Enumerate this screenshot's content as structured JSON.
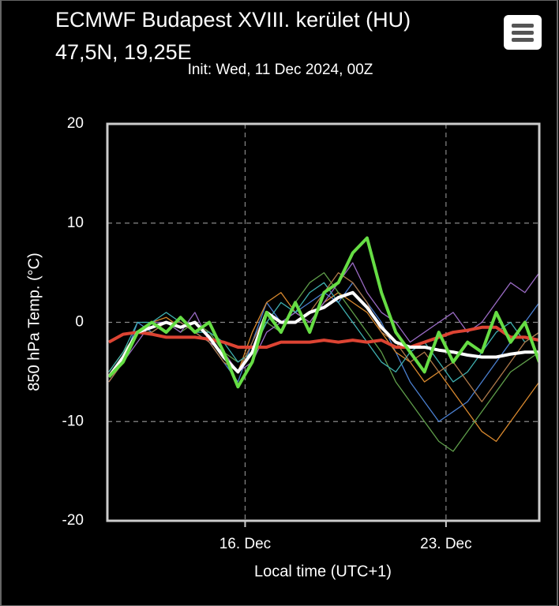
{
  "chart_data": {
    "type": "line",
    "title": "ECMWF Budapest XVIII. kerület (HU)",
    "subtitle": "47,5N, 19,25E",
    "annotation": "Init: Wed, 11 Dec 2024, 00Z",
    "y_label": "850 hPa Temp. (°C)",
    "x_label": "Local time (UTC+1)",
    "x": [
      11.25,
      11.75,
      12.25,
      12.75,
      13.25,
      13.75,
      14.25,
      14.75,
      15.25,
      15.75,
      16.25,
      16.75,
      17.25,
      17.75,
      18.25,
      18.75,
      19.25,
      19.75,
      20.25,
      20.75,
      21.25,
      21.75,
      22.25,
      22.75,
      23.25,
      23.75,
      24.25,
      24.75,
      25.25,
      25.75,
      26.25
    ],
    "xlim": [
      11.2,
      26.25
    ],
    "xticks": [
      {
        "value": 16,
        "label": "16. Dec"
      },
      {
        "value": 23,
        "label": "23. Dec"
      }
    ],
    "ylim": [
      -20,
      20
    ],
    "yticks": [
      -20,
      -10,
      0,
      10,
      20
    ],
    "grid": true,
    "series": [
      {
        "color": "#4a7fd0",
        "width": 1.3,
        "values": [
          -6,
          -4,
          0,
          -1,
          0,
          0,
          -1,
          -2,
          -4,
          -6,
          -2,
          2,
          0,
          1,
          2,
          3,
          2,
          4,
          2,
          0,
          -3,
          -6,
          -8,
          -10,
          -9,
          -8,
          -6,
          -4,
          -2,
          0,
          2
        ]
      },
      {
        "color": "#d9892e",
        "width": 1.3,
        "values": [
          -5,
          -3,
          -1,
          0,
          0.5,
          -0.5,
          0,
          -1,
          -3,
          -5,
          -1,
          2,
          3,
          1,
          0,
          2,
          3,
          2,
          1,
          -1,
          -3,
          -4,
          -6,
          -5,
          -7,
          -9,
          -11,
          -12,
          -10,
          -8,
          -6
        ]
      },
      {
        "color": "#5f9e4a",
        "width": 1.3,
        "values": [
          -5,
          -3,
          -1,
          -1,
          0,
          -1,
          0,
          -1,
          -3,
          -4,
          -3,
          0,
          -1,
          2,
          4,
          5,
          3,
          1,
          -1,
          -3,
          -6,
          -8,
          -10,
          -12,
          -13,
          -11,
          -9,
          -7,
          -5,
          -4,
          -3
        ]
      },
      {
        "color": "#9a6bc4",
        "width": 1.3,
        "values": [
          -6,
          -4,
          -2,
          0,
          0,
          -1,
          1,
          -2,
          -3,
          -5,
          -4,
          -1,
          0,
          1,
          0,
          2,
          4,
          6,
          3,
          1,
          0,
          -2,
          -1,
          0,
          1,
          -1,
          0,
          2,
          4,
          3,
          5
        ]
      },
      {
        "color": "#3fb0b0",
        "width": 1.3,
        "values": [
          -5,
          -3,
          0,
          0,
          1,
          0,
          -1,
          -1,
          -2,
          -4,
          -3,
          0,
          2,
          1,
          3,
          4,
          2,
          0,
          -2,
          -4,
          -5,
          -3,
          -2,
          -4,
          -6,
          -5,
          -3,
          -1,
          0,
          -2,
          -1
        ]
      },
      {
        "color": "#b07a4a",
        "width": 1.3,
        "values": [
          -6,
          -4,
          -1,
          -1,
          0,
          0,
          -1,
          -2,
          -4,
          -5,
          -2,
          1,
          0,
          0,
          1,
          3,
          5,
          4,
          2,
          -1,
          -2,
          -4,
          -3,
          -5,
          -4,
          -6,
          -8,
          -6,
          -4,
          -2,
          -1
        ]
      },
      {
        "color": "#dd4433",
        "width": 4,
        "values": [
          -2,
          -1.2,
          -1,
          -1.2,
          -1.5,
          -1.5,
          -1.5,
          -1.7,
          -2,
          -2.5,
          -2.5,
          -2.5,
          -2,
          -2,
          -2,
          -1.8,
          -2,
          -1.8,
          -2,
          -1.8,
          -2.5,
          -2.5,
          -2,
          -1.5,
          -1,
          -0.8,
          -0.5,
          -0.5,
          -1.5,
          -1.5,
          -1.8
        ]
      },
      {
        "color": "#ffffff",
        "width": 4,
        "values": [
          -5.5,
          -3.5,
          -1,
          -0.5,
          0,
          -0.5,
          0,
          -1.5,
          -3.5,
          -5,
          -3,
          1,
          0,
          0,
          1,
          1.5,
          2.5,
          3,
          1.5,
          -0.5,
          -2,
          -2.5,
          -2.5,
          -2.8,
          -3,
          -3.3,
          -3.5,
          -3.5,
          -3.2,
          -3,
          -3
        ]
      },
      {
        "color": "#66dd44",
        "width": 4,
        "values": [
          -5.5,
          -4,
          -1,
          0,
          -1,
          0.5,
          -1,
          0,
          -3,
          -6.5,
          -4,
          1,
          -1,
          2,
          -1,
          3,
          4,
          7,
          8.5,
          3,
          -1,
          -3,
          -5,
          -1,
          -4,
          -2,
          -3,
          1,
          -2,
          0,
          -4
        ]
      }
    ]
  }
}
